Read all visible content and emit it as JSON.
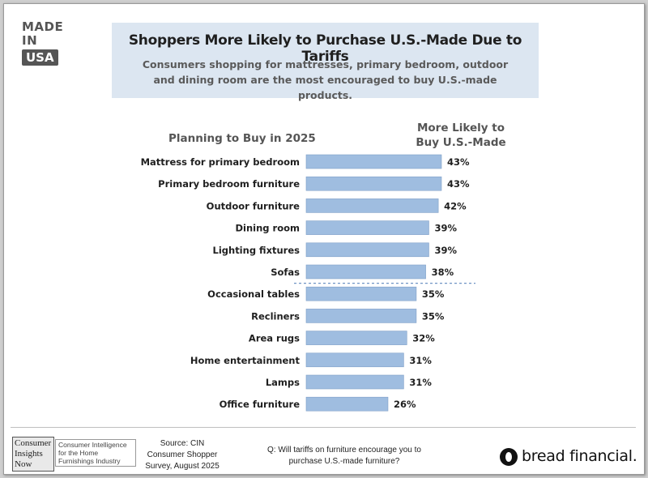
{
  "logo": {
    "line1": "MADE IN",
    "line2": "USA"
  },
  "header": {
    "title": "Shoppers More Likely to Purchase U.S.-Made Due to Tariffs",
    "subtitle": "Consumers shopping for mattresses, primary bedroom, outdoor and dining room are the most encouraged to buy U.S.-made products."
  },
  "column_headers": {
    "left": "Planning to Buy in 2025",
    "right_line1": "More Likely to",
    "right_line2": "Buy U.S.-Made"
  },
  "chart_data": {
    "type": "bar",
    "orientation": "horizontal",
    "categories": [
      "Mattress for primary bedroom",
      "Primary bedroom furniture",
      "Outdoor furniture",
      "Dining room",
      "Lighting fixtures",
      "Sofas",
      "Occasional tables",
      "Recliners",
      "Area rugs",
      "Home entertainment",
      "Lamps",
      "Office furniture"
    ],
    "values": [
      43,
      43,
      42,
      39,
      39,
      38,
      35,
      35,
      32,
      31,
      31,
      26
    ],
    "value_labels": [
      "43%",
      "43%",
      "42%",
      "39%",
      "39%",
      "38%",
      "35%",
      "35%",
      "32%",
      "31%",
      "31%",
      "26%"
    ],
    "unit": "%",
    "xlim": [
      0,
      43
    ],
    "separator_after_index": 5,
    "bar_color": "#9fbde0",
    "bar_border_color": "#7f9fc7",
    "grid": false,
    "legend": "none"
  },
  "footer": {
    "cin_logo": {
      "word1": "Consumer",
      "word2": "Insights",
      "word3": "Now",
      "tagline": "Consumer Intelligence for the Home Furnishings Industry"
    },
    "source": {
      "line1": "Source: CIN",
      "line2": "Consumer Shopper",
      "line3": "Survey, August 2025"
    },
    "question": {
      "line1": "Q: Will tariffs on furniture encourage you to",
      "line2": "purchase U.S.-made furniture?"
    },
    "brand": "bread financial."
  },
  "colors": {
    "header_bg": "#dce6f1",
    "bar": "#9fbde0",
    "separator": "#6f94c4",
    "text_dark": "#1f1f1f",
    "text_muted": "#555555"
  }
}
